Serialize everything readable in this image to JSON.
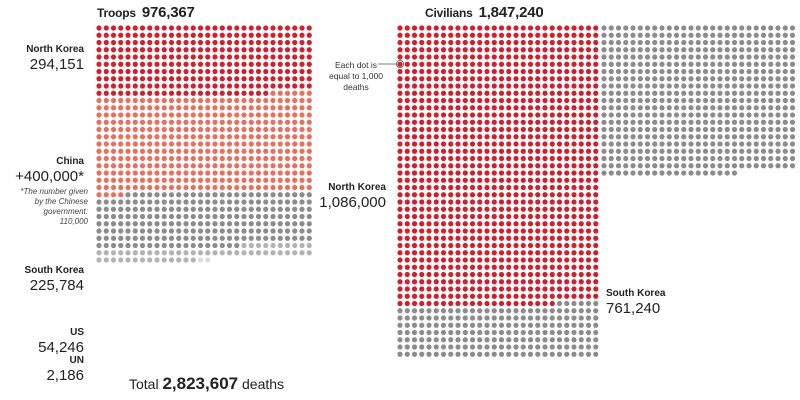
{
  "chart_data": {
    "type": "waffle",
    "unit_note": "Each dot is equal to 1,000 deaths",
    "total": {
      "prefix": "Total",
      "value_text": "2,823,607",
      "suffix": "deaths",
      "value": 2823607
    },
    "troops": {
      "title": "Troops",
      "value_text": "976,367",
      "value": 976367,
      "series": [
        {
          "name": "North Korea",
          "value": 294151,
          "value_text": "294,151",
          "color": "#d0202e"
        },
        {
          "name": "China",
          "value": 400000,
          "value_text": "+400,000*",
          "color": "#e8705e",
          "note": "*The number given by the Chinese government: 110,000"
        },
        {
          "name": "South Korea",
          "value": 225784,
          "value_text": "225,784",
          "color": "#8c8c8c"
        },
        {
          "name": "US",
          "value": 54246,
          "value_text": "54,246",
          "color": "#b3b3b3"
        },
        {
          "name": "UN",
          "value": 2186,
          "value_text": "2,186",
          "color": "#dcdcdc"
        }
      ]
    },
    "civilians": {
      "title": "Civilians",
      "value_text": "1,847,240",
      "value": 1847240,
      "series": [
        {
          "name": "North Korea",
          "value": 1086000,
          "value_text": "1,086,000",
          "color": "#d0202e"
        },
        {
          "name": "South Korea",
          "value": 761240,
          "value_text": "761,240",
          "color": "#8c8c8c"
        }
      ]
    }
  }
}
